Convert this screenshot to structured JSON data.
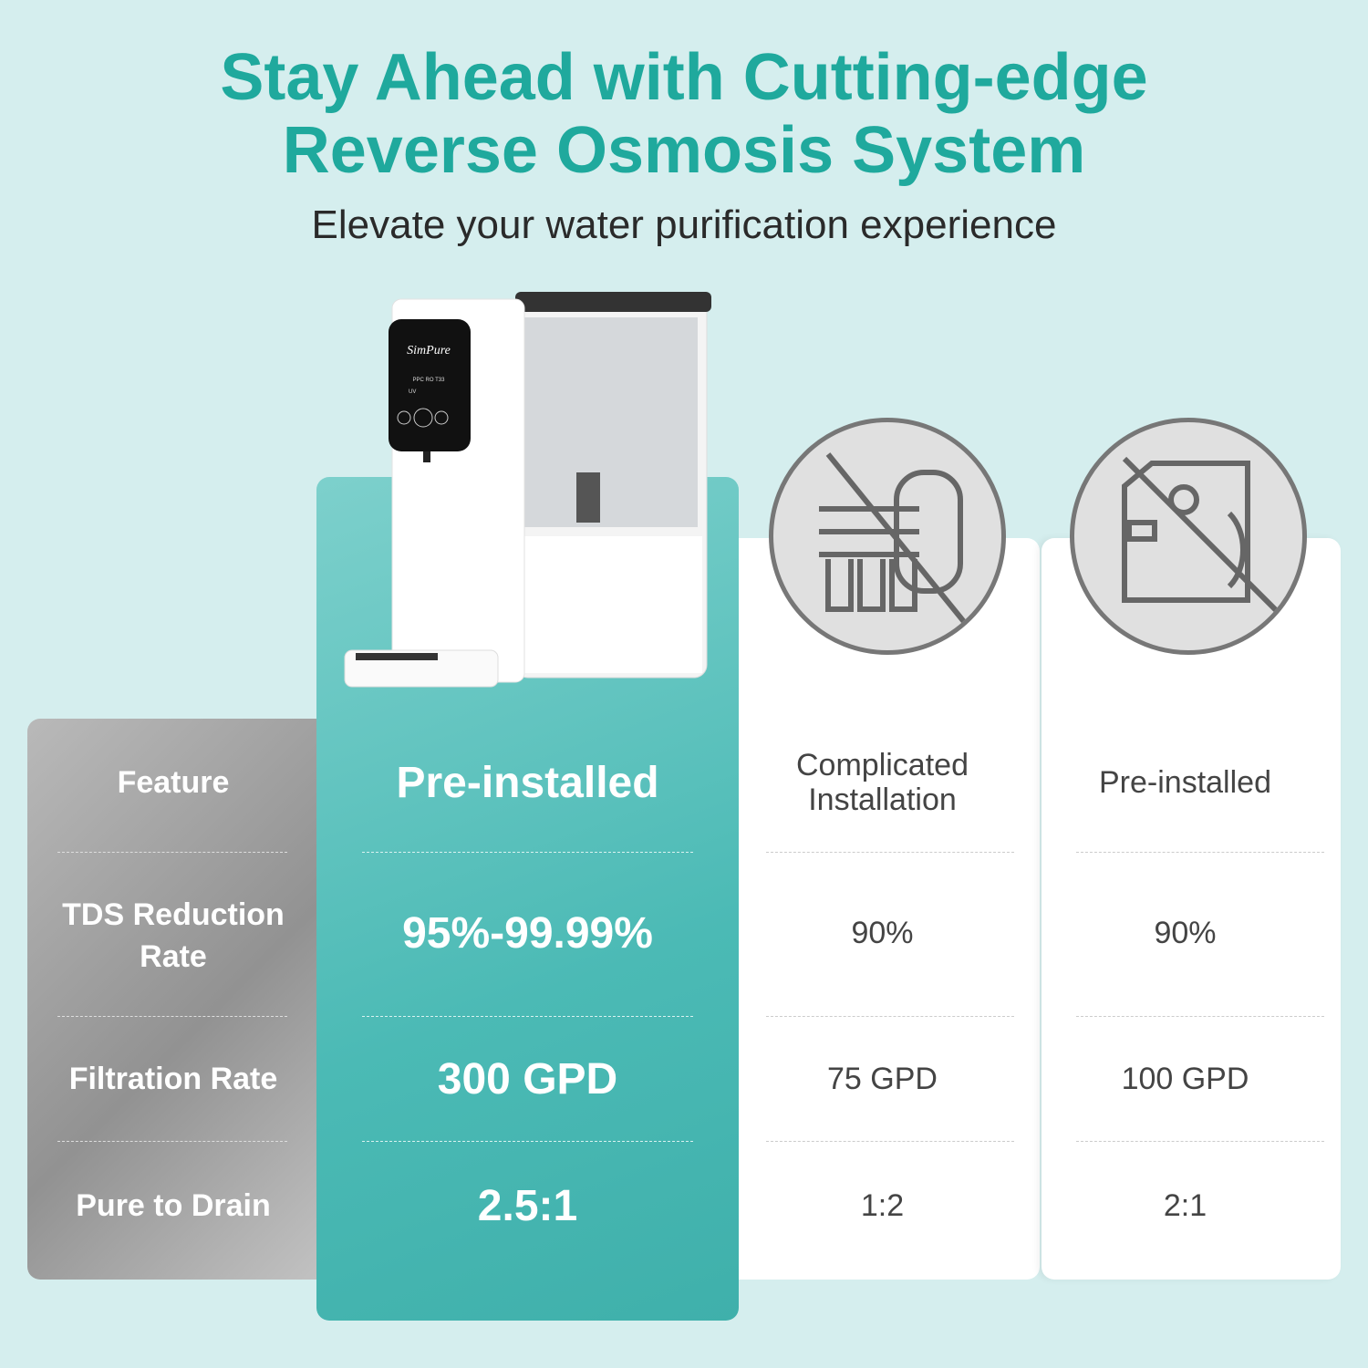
{
  "header": {
    "title_line1": "Stay Ahead with Cutting-edge",
    "title_line2": "Reverse Osmosis System",
    "subtitle": "Elevate your water purification experience"
  },
  "product": {
    "brand": "SimPure",
    "indicators": [
      "PPC",
      "RO",
      "T33",
      "UV"
    ]
  },
  "comparison": {
    "features": [
      "Feature",
      "TDS Reduction Rate",
      "Filtration Rate",
      "Pure to Drain"
    ],
    "simpure": [
      "Pre-installed",
      "95%-99.99%",
      "300 GPD",
      "2.5:1"
    ],
    "under_sink": {
      "icon": "under-sink-ro-crossed-icon",
      "values": [
        "Complicated Installation",
        "90%",
        "75 GPD",
        "1:2"
      ]
    },
    "countertop": {
      "icon": "countertop-ro-crossed-icon",
      "values": [
        "Pre-installed",
        "90%",
        "100 GPD",
        "2:1"
      ]
    }
  },
  "colors": {
    "accent": "#1fa99d",
    "teal_panel": "#4bbab5",
    "background": "#d5eeee"
  }
}
